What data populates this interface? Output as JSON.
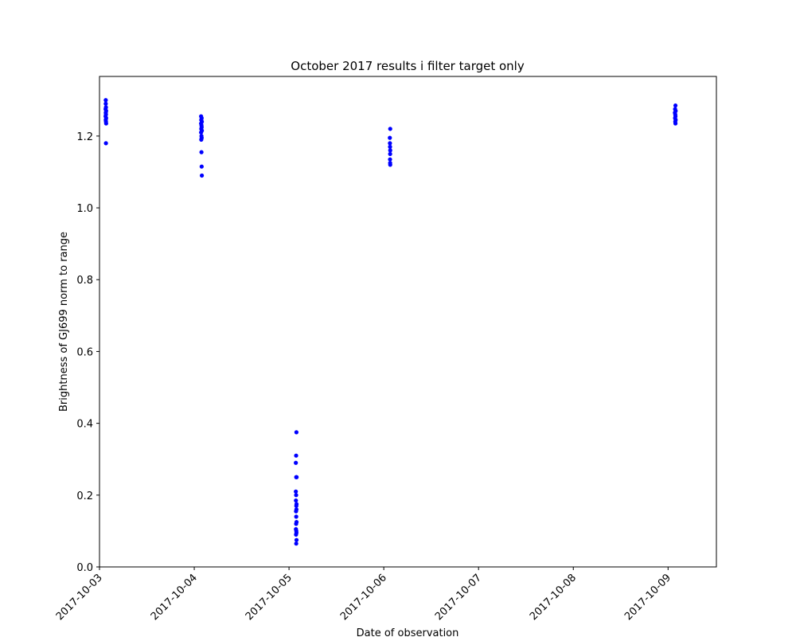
{
  "chart_data": {
    "type": "scatter",
    "title": "October 2017 results i filter target only",
    "xlabel": "Date of observation",
    "ylabel": "Brightness of GJ699 norm to range",
    "series": [
      {
        "name": "GJ699",
        "color": "#0000ff",
        "x": [
          17442.066,
          17442.066,
          17442.068,
          17442.064,
          17442.07,
          17442.066,
          17442.068,
          17442.064,
          17442.07,
          17442.066,
          17442.068,
          17442.07,
          17442.068,
          17443.072,
          17443.078,
          17443.074,
          17443.08,
          17443.072,
          17443.076,
          17443.078,
          17443.074,
          17443.08,
          17443.072,
          17443.076,
          17443.078,
          17443.074,
          17443.076,
          17443.078,
          17443.08,
          17444.078,
          17444.075,
          17444.072,
          17444.08,
          17444.076,
          17444.072,
          17444.075,
          17444.073,
          17444.079,
          17444.077,
          17444.078,
          17444.074,
          17444.076,
          17444.079,
          17444.075,
          17444.073,
          17444.077,
          17444.078,
          17444.074,
          17444.079,
          17444.076,
          17445.068,
          17445.064,
          17445.065,
          17445.066,
          17445.068,
          17445.067,
          17445.066,
          17445.067,
          17445.068,
          17448.078,
          17448.074,
          17448.08,
          17448.072,
          17448.076,
          17448.078,
          17448.074,
          17448.08,
          17448.076,
          17448.078
        ],
        "y": [
          1.3,
          1.29,
          1.28,
          1.275,
          1.27,
          1.265,
          1.26,
          1.255,
          1.25,
          1.245,
          1.24,
          1.235,
          1.18,
          1.255,
          1.25,
          1.245,
          1.24,
          1.235,
          1.23,
          1.225,
          1.22,
          1.215,
          1.21,
          1.2,
          1.195,
          1.19,
          1.155,
          1.115,
          1.09,
          0.375,
          0.31,
          0.29,
          0.25,
          0.25,
          0.21,
          0.2,
          0.185,
          0.175,
          0.17,
          0.16,
          0.155,
          0.14,
          0.125,
          0.12,
          0.105,
          0.1,
          0.095,
          0.09,
          0.075,
          0.065,
          1.22,
          1.195,
          1.18,
          1.17,
          1.16,
          1.15,
          1.135,
          1.125,
          1.12,
          1.285,
          1.275,
          1.27,
          1.265,
          1.26,
          1.255,
          1.25,
          1.245,
          1.24,
          1.235
        ]
      }
    ],
    "xlim": [
      17442.0,
      17448.51
    ],
    "xticks": [
      {
        "value": 17442,
        "label": "2017-10-03"
      },
      {
        "value": 17443,
        "label": "2017-10-04"
      },
      {
        "value": 17444,
        "label": "2017-10-05"
      },
      {
        "value": 17445,
        "label": "2017-10-06"
      },
      {
        "value": 17446,
        "label": "2017-10-07"
      },
      {
        "value": 17447,
        "label": "2017-10-08"
      },
      {
        "value": 17448,
        "label": "2017-10-09"
      }
    ],
    "ylim": [
      0,
      1.366
    ],
    "yticks": [
      {
        "value": 0,
        "label": "0.0"
      },
      0.2,
      0.4,
      0.6,
      0.8,
      {
        "value": 1,
        "label": "1.0"
      },
      1.2
    ],
    "grid": false
  }
}
